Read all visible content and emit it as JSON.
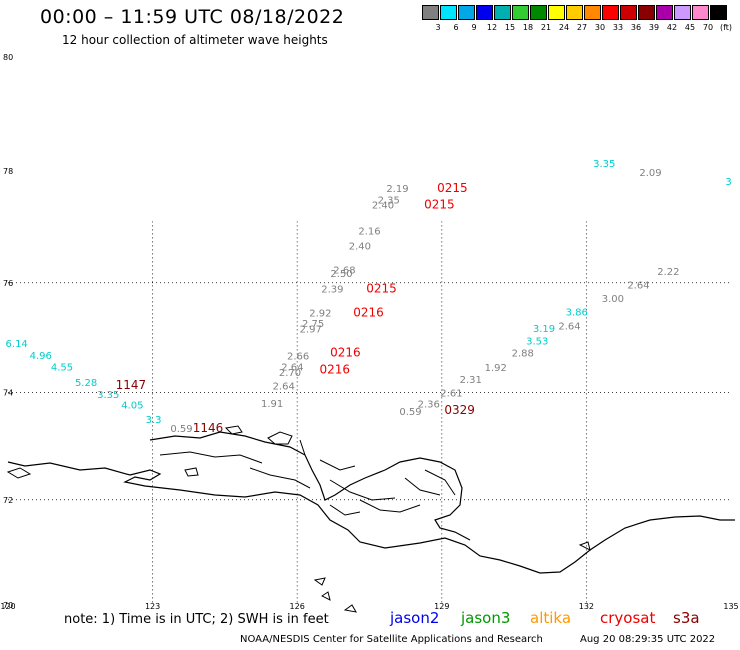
{
  "header": {
    "title": "00:00 – 11:59 UTC 08/18/2022",
    "subtitle": "12 hour collection of altimeter wave heights"
  },
  "legend": {
    "colors": [
      "#808080",
      "#00e5ff",
      "#00a8e8",
      "#0000ee",
      "#00b0b0",
      "#33cc33",
      "#008800",
      "#ffff00",
      "#ffcc00",
      "#ff8800",
      "#ff0000",
      "#cc0000",
      "#880000",
      "#aa00aa",
      "#cc99ff",
      "#ff88cc",
      "#000000"
    ],
    "labels": [
      "3",
      "6",
      "9",
      "12",
      "15",
      "18",
      "21",
      "24",
      "27",
      "30",
      "33",
      "36",
      "39",
      "42",
      "45",
      "70",
      "(ft)"
    ]
  },
  "axes": {
    "lat_labels": [
      "80",
      "78",
      "76",
      "74",
      "72",
      "70"
    ],
    "lon_labels": [
      "120",
      "123",
      "126",
      "129",
      "132",
      "135"
    ]
  },
  "observations": [
    {
      "text": "2.19",
      "lon": 128.08,
      "lat": 77.63,
      "color": "#808080"
    },
    {
      "text": "2.35",
      "lon": 127.9,
      "lat": 77.42,
      "color": "#808080"
    },
    {
      "text": "2.40",
      "lon": 127.78,
      "lat": 77.33,
      "color": "#808080"
    },
    {
      "text": "2.16",
      "lon": 127.5,
      "lat": 76.87,
      "color": "#808080"
    },
    {
      "text": "2.40",
      "lon": 127.3,
      "lat": 76.6,
      "color": "#808080"
    },
    {
      "text": "2.68",
      "lon": 126.98,
      "lat": 76.17,
      "color": "#808080"
    },
    {
      "text": "2.50",
      "lon": 126.92,
      "lat": 76.1,
      "color": "#808080"
    },
    {
      "text": "2.39",
      "lon": 126.73,
      "lat": 75.82,
      "color": "#808080"
    },
    {
      "text": "2.92",
      "lon": 126.48,
      "lat": 75.39,
      "color": "#808080"
    },
    {
      "text": "2.75",
      "lon": 126.33,
      "lat": 75.2,
      "color": "#808080"
    },
    {
      "text": "2.97",
      "lon": 126.28,
      "lat": 75.1,
      "color": "#808080"
    },
    {
      "text": "2.66",
      "lon": 126.02,
      "lat": 74.6,
      "color": "#808080"
    },
    {
      "text": "2.64",
      "lon": 125.9,
      "lat": 74.4,
      "color": "#808080"
    },
    {
      "text": "2.70",
      "lon": 125.85,
      "lat": 74.3,
      "color": "#808080"
    },
    {
      "text": "2.64",
      "lon": 125.72,
      "lat": 74.05,
      "color": "#808080"
    },
    {
      "text": "1.91",
      "lon": 125.48,
      "lat": 73.73,
      "color": "#808080"
    },
    {
      "text": "0.59",
      "lon": 128.35,
      "lat": 73.58,
      "color": "#808080"
    },
    {
      "text": "2.36",
      "lon": 128.73,
      "lat": 73.72,
      "color": "#808080"
    },
    {
      "text": "2.61",
      "lon": 129.2,
      "lat": 73.92,
      "color": "#808080"
    },
    {
      "text": "2.31",
      "lon": 129.6,
      "lat": 74.17,
      "color": "#808080"
    },
    {
      "text": "1.92",
      "lon": 130.12,
      "lat": 74.39,
      "color": "#808080"
    },
    {
      "text": "2.88",
      "lon": 130.68,
      "lat": 74.66,
      "color": "#808080"
    },
    {
      "text": "2.64",
      "lon": 131.65,
      "lat": 75.15,
      "color": "#808080"
    },
    {
      "text": "3.00",
      "lon": 132.55,
      "lat": 75.65,
      "color": "#808080"
    },
    {
      "text": "2.64",
      "lon": 133.08,
      "lat": 75.9,
      "color": "#808080"
    },
    {
      "text": "2.22",
      "lon": 133.7,
      "lat": 76.14,
      "color": "#808080"
    },
    {
      "text": "2.09",
      "lon": 133.33,
      "lat": 77.91,
      "color": "#808080"
    },
    {
      "text": "3.35",
      "lon": 132.37,
      "lat": 78.07,
      "color": "#00cccc"
    },
    {
      "text": "3",
      "lon": 134.95,
      "lat": 77.75,
      "color": "#00cccc"
    },
    {
      "text": "3.53",
      "lon": 130.98,
      "lat": 74.88,
      "color": "#00cccc"
    },
    {
      "text": "3.19",
      "lon": 131.12,
      "lat": 75.11,
      "color": "#00cccc"
    },
    {
      "text": "3.86",
      "lon": 131.8,
      "lat": 75.41,
      "color": "#00cccc"
    },
    {
      "text": "6.14",
      "lon": 120.18,
      "lat": 74.83,
      "color": "#00cccc"
    },
    {
      "text": "4.96",
      "lon": 120.68,
      "lat": 74.61,
      "color": "#00cccc"
    },
    {
      "text": "4.55",
      "lon": 121.12,
      "lat": 74.4,
      "color": "#00cccc"
    },
    {
      "text": "5.28",
      "lon": 121.62,
      "lat": 74.12,
      "color": "#00cccc"
    },
    {
      "text": "3.35",
      "lon": 122.08,
      "lat": 73.9,
      "color": "#00cccc"
    },
    {
      "text": "4.05",
      "lon": 122.58,
      "lat": 73.7,
      "color": "#00cccc"
    },
    {
      "text": "3.3",
      "lon": 123.02,
      "lat": 73.43,
      "color": "#00cccc"
    },
    {
      "text": "0.59",
      "lon": 123.6,
      "lat": 73.27,
      "color": "#808080"
    }
  ],
  "times": [
    {
      "text": "0215",
      "lon": 129.22,
      "lat": 77.63,
      "color": "#ee0000"
    },
    {
      "text": "0215",
      "lon": 128.95,
      "lat": 77.33,
      "color": "#ee0000"
    },
    {
      "text": "0215",
      "lon": 127.75,
      "lat": 75.82,
      "color": "#ee0000"
    },
    {
      "text": "0216",
      "lon": 127.48,
      "lat": 75.39,
      "color": "#ee0000"
    },
    {
      "text": "0216",
      "lon": 127.0,
      "lat": 74.66,
      "color": "#ee0000"
    },
    {
      "text": "0216",
      "lon": 126.78,
      "lat": 74.35,
      "color": "#ee0000"
    },
    {
      "text": "1147",
      "lon": 122.55,
      "lat": 74.06,
      "color": "#880000"
    },
    {
      "text": "1146",
      "lon": 124.15,
      "lat": 73.27,
      "color": "#880000"
    },
    {
      "text": "0329",
      "lon": 129.37,
      "lat": 73.6,
      "color": "#880000"
    }
  ],
  "footer": {
    "note": "note:  1) Time is in UTC;  2) SWH is in feet",
    "satellites": [
      {
        "name": "jason2",
        "color": "#0000ee"
      },
      {
        "name": "jason3",
        "color": "#009900"
      },
      {
        "name": "altika",
        "color": "#ff9900"
      },
      {
        "name": "cryosat",
        "color": "#ee0000"
      },
      {
        "name": "s3a",
        "color": "#880000"
      }
    ],
    "credit": "NOAA/NESDIS Center for Satellite Applications and Research",
    "timestamp": "Aug 20 08:29:35 UTC 2022"
  }
}
